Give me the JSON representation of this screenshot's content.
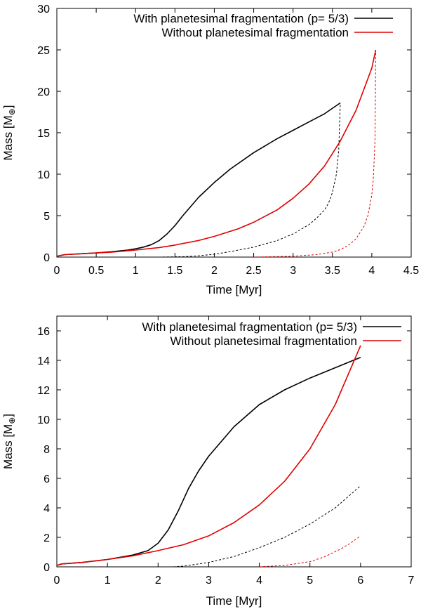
{
  "chart_data": [
    {
      "type": "line",
      "xlabel": "Time [Myr]",
      "ylabel": "Mass [M",
      "ylabel_symbol": "⊕",
      "ylabel_close": "]",
      "xlim": [
        0,
        4.5
      ],
      "ylim": [
        0,
        30
      ],
      "xticks": [
        "0",
        "0.5",
        "1",
        "1.5",
        "2",
        "2.5",
        "3",
        "3.5",
        "4",
        "4.5"
      ],
      "yticks": [
        "0",
        "5",
        "10",
        "15",
        "20",
        "25",
        "30"
      ],
      "legend": [
        {
          "label": "With planetesimal fragmentation (p= 5/3)",
          "color": "#000000"
        },
        {
          "label": "Without planetesimal fragmentation",
          "color": "#e00000"
        }
      ],
      "series": [
        {
          "name": "With planetesimal fragmentation (p= 5/3)",
          "style": "solid",
          "color": "#000000",
          "x": [
            0,
            0.1,
            0.3,
            0.5,
            0.7,
            0.9,
            1.0,
            1.1,
            1.2,
            1.3,
            1.4,
            1.5,
            1.6,
            1.8,
            2.0,
            2.2,
            2.5,
            2.8,
            3.0,
            3.2,
            3.4,
            3.6
          ],
          "y": [
            0.1,
            0.3,
            0.4,
            0.5,
            0.65,
            0.85,
            1.0,
            1.2,
            1.5,
            2.0,
            2.8,
            3.8,
            5.0,
            7.2,
            9.0,
            10.6,
            12.6,
            14.3,
            15.3,
            16.3,
            17.3,
            18.6
          ]
        },
        {
          "name": "With planetesimal fragmentation - core",
          "style": "dashed",
          "color": "#000000",
          "x": [
            1.3,
            1.6,
            1.8,
            2.0,
            2.2,
            2.5,
            2.8,
            3.0,
            3.2,
            3.3,
            3.4,
            3.45,
            3.5,
            3.55,
            3.58,
            3.6
          ],
          "y": [
            0,
            0.05,
            0.15,
            0.35,
            0.65,
            1.2,
            2.0,
            2.8,
            3.9,
            4.7,
            5.7,
            6.5,
            7.8,
            10.0,
            13.0,
            18.6
          ]
        },
        {
          "name": "Without planetesimal fragmentation",
          "style": "solid",
          "color": "#e00000",
          "x": [
            0,
            0.1,
            0.3,
            0.5,
            0.7,
            1.0,
            1.3,
            1.5,
            1.8,
            2.0,
            2.3,
            2.5,
            2.8,
            3.0,
            3.2,
            3.4,
            3.6,
            3.8,
            4.0,
            4.05
          ],
          "y": [
            0.1,
            0.3,
            0.4,
            0.5,
            0.6,
            0.85,
            1.15,
            1.45,
            2.0,
            2.5,
            3.4,
            4.2,
            5.7,
            7.1,
            8.8,
            11.0,
            14.0,
            17.7,
            22.8,
            25.0
          ]
        },
        {
          "name": "Without planetesimal fragmentation - core",
          "style": "dashed",
          "color": "#e00000",
          "x": [
            2.5,
            3.0,
            3.3,
            3.5,
            3.6,
            3.7,
            3.8,
            3.9,
            3.95,
            4.0,
            4.02,
            4.04,
            4.05
          ],
          "y": [
            0,
            0.1,
            0.3,
            0.6,
            0.9,
            1.4,
            2.2,
            3.7,
            5.0,
            7.5,
            9.5,
            14.0,
            25.0
          ]
        }
      ]
    },
    {
      "type": "line",
      "xlabel": "Time [Myr]",
      "ylabel": "Mass [M",
      "ylabel_symbol": "⊕",
      "ylabel_close": "]",
      "xlim": [
        0,
        7
      ],
      "ylim": [
        0,
        17
      ],
      "xticks": [
        "0",
        "1",
        "2",
        "3",
        "4",
        "5",
        "6",
        "7"
      ],
      "yticks": [
        "0",
        "2",
        "4",
        "6",
        "8",
        "10",
        "12",
        "14",
        "16"
      ],
      "legend": [
        {
          "label": "With planetesimal fragmentation (p= 5/3)",
          "color": "#000000"
        },
        {
          "label": "Without planetesimal fragmentation",
          "color": "#e00000"
        }
      ],
      "series": [
        {
          "name": "With planetesimal fragmentation (p= 5/3)",
          "style": "solid",
          "color": "#000000",
          "x": [
            0,
            0.1,
            0.5,
            1.0,
            1.5,
            1.8,
            2.0,
            2.2,
            2.4,
            2.6,
            2.8,
            3.0,
            3.5,
            4.0,
            4.5,
            5.0,
            5.5,
            6.0
          ],
          "y": [
            0.1,
            0.2,
            0.3,
            0.5,
            0.8,
            1.1,
            1.6,
            2.5,
            3.8,
            5.3,
            6.5,
            7.5,
            9.5,
            11.0,
            12.0,
            12.8,
            13.5,
            14.2
          ]
        },
        {
          "name": "With planetesimal fragmentation - core",
          "style": "dashed",
          "color": "#000000",
          "x": [
            2.3,
            2.5,
            3.0,
            3.5,
            4.0,
            4.5,
            5.0,
            5.5,
            6.0
          ],
          "y": [
            0,
            0.05,
            0.3,
            0.7,
            1.3,
            2.0,
            2.9,
            4.0,
            5.5
          ]
        },
        {
          "name": "Without planetesimal fragmentation",
          "style": "solid",
          "color": "#e00000",
          "x": [
            0,
            0.1,
            0.5,
            1.0,
            1.5,
            2.0,
            2.5,
            3.0,
            3.5,
            4.0,
            4.5,
            5.0,
            5.5,
            6.0
          ],
          "y": [
            0.1,
            0.2,
            0.3,
            0.5,
            0.75,
            1.1,
            1.5,
            2.1,
            3.0,
            4.2,
            5.8,
            8.0,
            11.0,
            15.0
          ]
        },
        {
          "name": "Without planetesimal fragmentation - core",
          "style": "dashed",
          "color": "#e00000",
          "x": [
            4.0,
            4.5,
            5.0,
            5.3,
            5.6,
            5.8,
            6.0
          ],
          "y": [
            0,
            0.1,
            0.35,
            0.7,
            1.2,
            1.6,
            2.1
          ]
        }
      ]
    }
  ]
}
